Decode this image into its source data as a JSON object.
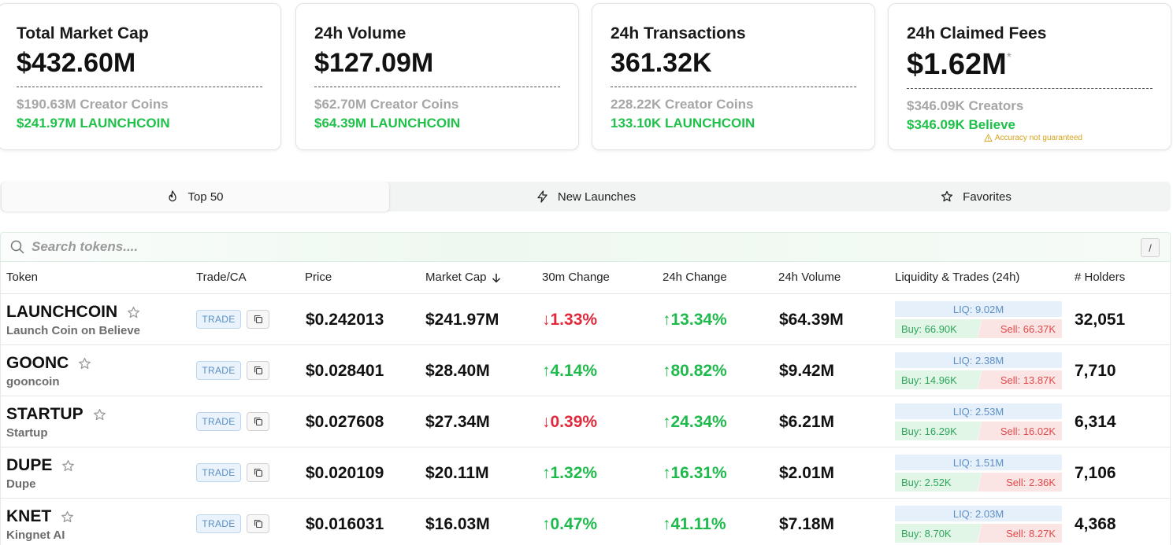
{
  "stats": [
    {
      "title": "Total Market Cap",
      "value": "$432.60M",
      "sub1": "$190.63M Creator Coins",
      "sub2": "$241.97M LAUNCHCOIN"
    },
    {
      "title": "24h Volume",
      "value": "$127.09M",
      "sub1": "$62.70M Creator Coins",
      "sub2": "$64.39M LAUNCHCOIN"
    },
    {
      "title": "24h Transactions",
      "value": "361.32K",
      "sub1": "228.22K Creator Coins",
      "sub2": "133.10K LAUNCHCOIN"
    },
    {
      "title": "24h Claimed Fees",
      "value": "$1.62M",
      "asterisk": "*",
      "sub1": "$346.09K Creators",
      "sub2": "$346.09K Believe",
      "warning": "Accuracy not guaranteed"
    }
  ],
  "tabs": [
    {
      "label": "Top 50",
      "icon": "flame-icon",
      "active": true
    },
    {
      "label": "New Launches",
      "icon": "lightning-icon",
      "active": false
    },
    {
      "label": "Favorites",
      "icon": "star-icon",
      "active": false
    }
  ],
  "search": {
    "placeholder": "Search tokens....",
    "shortcut": "/"
  },
  "table": {
    "headers": {
      "token": "Token",
      "trade": "Trade/CA",
      "price": "Price",
      "market_cap": "Market Cap",
      "change_30m": "30m Change",
      "change_24h": "24h Change",
      "volume_24h": "24h Volume",
      "liquidity": "Liquidity & Trades (24h)",
      "holders": "# Holders"
    },
    "sort_indicator": "arrow-down-icon",
    "trade_label": "TRADE",
    "rows": [
      {
        "symbol": "LAUNCHCOIN",
        "name": "Launch Coin on Believe",
        "price": "$0.242013",
        "market_cap": "$241.97M",
        "change_30m": "1.33%",
        "change_30m_dir": "down",
        "change_24h": "13.34%",
        "change_24h_dir": "up",
        "volume": "$64.39M",
        "liq": "LIQ: 9.02M",
        "buy": "Buy: 66.90K",
        "sell": "Sell: 66.37K",
        "holders": "32,051"
      },
      {
        "symbol": "GOONC",
        "name": "gooncoin",
        "price": "$0.028401",
        "market_cap": "$28.40M",
        "change_30m": "4.14%",
        "change_30m_dir": "up",
        "change_24h": "80.82%",
        "change_24h_dir": "up",
        "volume": "$9.42M",
        "liq": "LIQ: 2.38M",
        "buy": "Buy: 14.96K",
        "sell": "Sell: 13.87K",
        "holders": "7,710"
      },
      {
        "symbol": "STARTUP",
        "name": "Startup",
        "price": "$0.027608",
        "market_cap": "$27.34M",
        "change_30m": "0.39%",
        "change_30m_dir": "down",
        "change_24h": "24.34%",
        "change_24h_dir": "up",
        "volume": "$6.21M",
        "liq": "LIQ: 2.53M",
        "buy": "Buy: 16.29K",
        "sell": "Sell: 16.02K",
        "holders": "6,314"
      },
      {
        "symbol": "DUPE",
        "name": "Dupe",
        "price": "$0.020109",
        "market_cap": "$20.11M",
        "change_30m": "1.32%",
        "change_30m_dir": "up",
        "change_24h": "16.31%",
        "change_24h_dir": "up",
        "volume": "$2.01M",
        "liq": "LIQ: 1.51M",
        "buy": "Buy: 2.52K",
        "sell": "Sell: 2.36K",
        "holders": "7,106"
      },
      {
        "symbol": "KNET",
        "name": "Kingnet AI",
        "price": "$0.016031",
        "market_cap": "$16.03M",
        "change_30m": "0.47%",
        "change_30m_dir": "up",
        "change_24h": "41.11%",
        "change_24h_dir": "up",
        "volume": "$7.18M",
        "liq": "LIQ: 2.03M",
        "buy": "Buy: 8.70K",
        "sell": "Sell: 8.27K",
        "holders": "4,368"
      }
    ]
  }
}
